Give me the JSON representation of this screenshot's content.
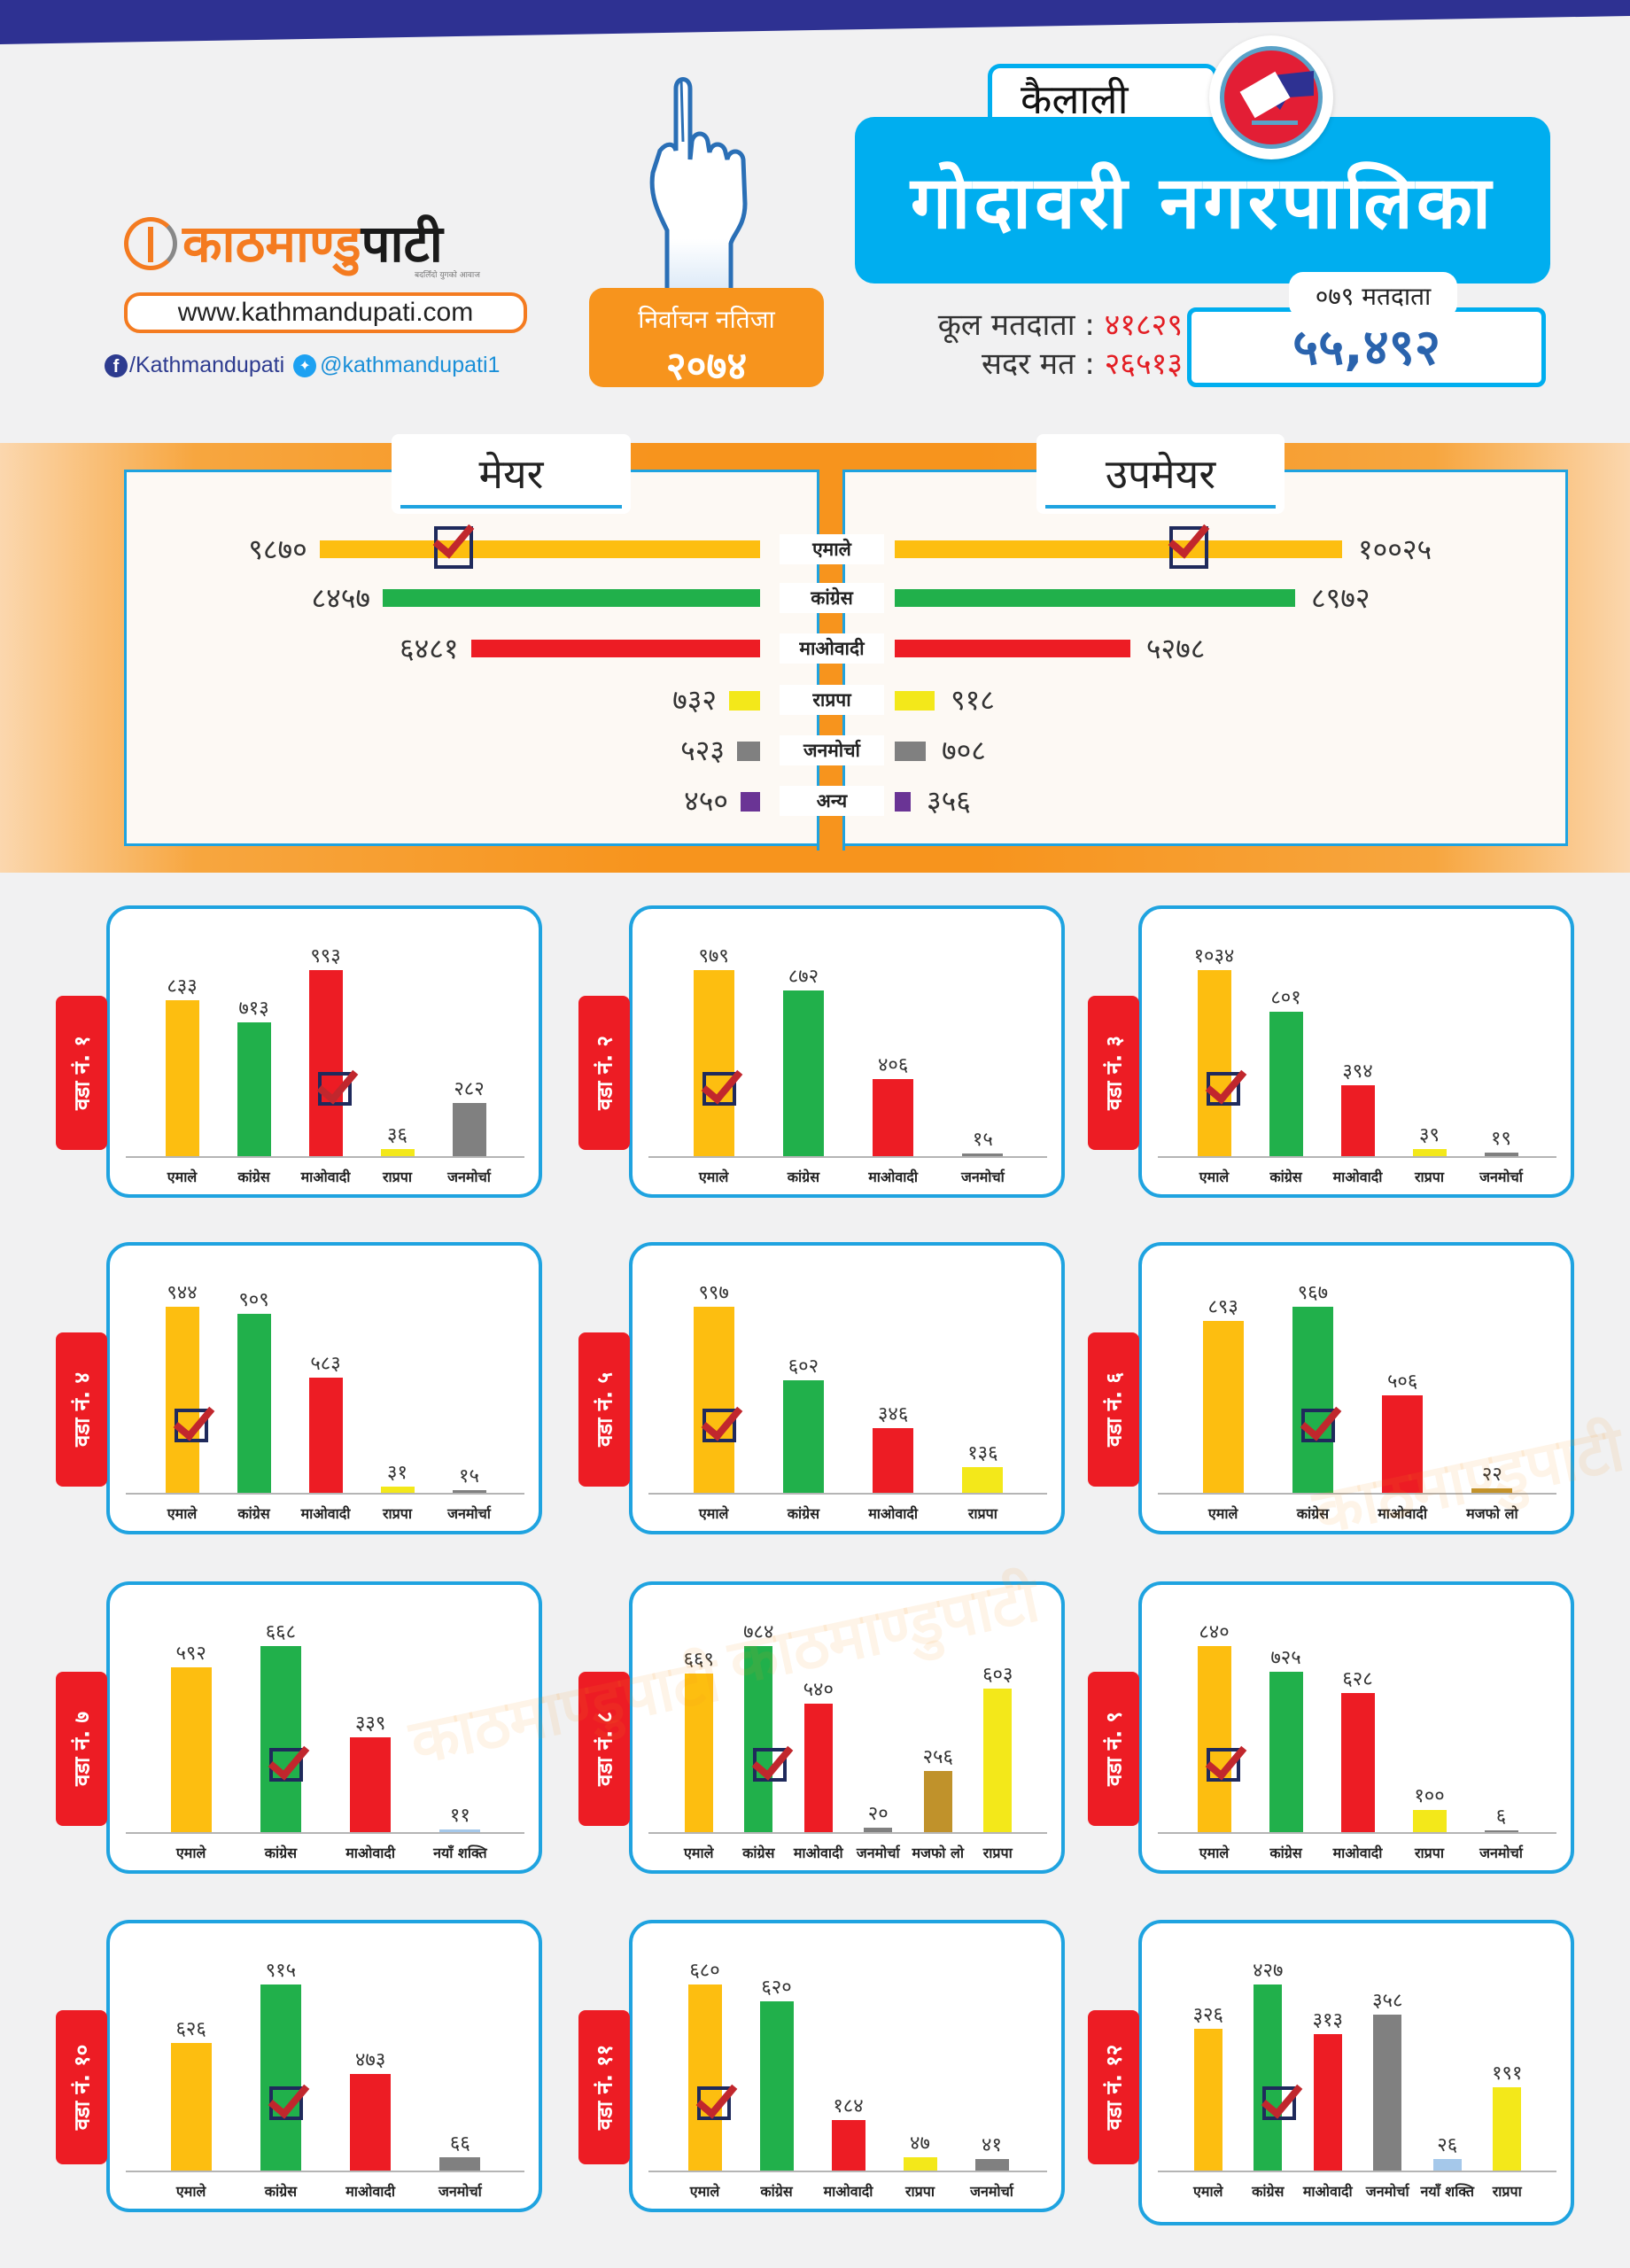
{
  "brand": {
    "logo_part1": "काठमाण्डु",
    "logo_part2": "पाटी",
    "tagline": "बदलिँदो युगको आवाज",
    "website": "www.kathmandupati.com",
    "facebook": "/Kathmandupati",
    "twitter": "@kathmandupati1"
  },
  "header": {
    "result_line1": "निर्वाचन नतिजा",
    "result_line2": "२०७४",
    "district": "कैलाली",
    "municipality": "गोदावरी नगरपालिका",
    "total_voters_label": "कूल मतदाता :",
    "total_voters_value": "४१८२९",
    "valid_votes_label": "सदर मत :",
    "valid_votes_value": "२६५१३",
    "voters_079_label": "०७९ मतदाता",
    "voters_079_value": "५५,४९२"
  },
  "colors": {
    "uml": "#fdbe10",
    "congress": "#21b04b",
    "maoist": "#ed1c24",
    "rpp": "#f3e81a",
    "janmorcha": "#808080",
    "other": "#6a3495",
    "majfo": "#c0922b",
    "naya_shakti": "#a5c8ea",
    "accent_blue": "#00aeef",
    "accent_orange": "#f7941d",
    "navy": "#2e3192"
  },
  "chart_data": [
    {
      "type": "bar",
      "title": "मेयर",
      "orientation": "horizontal",
      "categories": [
        "एमाले",
        "कांग्रेस",
        "माओवादी",
        "राप्रपा",
        "जनमोर्चा",
        "अन्य"
      ],
      "values": [
        9870,
        8457,
        6481,
        732,
        523,
        450
      ],
      "value_labels": [
        "९८७०",
        "८४५७",
        "६४८१",
        "७३२",
        "५२३",
        "४५०"
      ],
      "winner": "एमाले"
    },
    {
      "type": "bar",
      "title": "उपमेयर",
      "orientation": "horizontal",
      "categories": [
        "एमाले",
        "कांग्रेस",
        "माओवादी",
        "राप्रपा",
        "जनमोर्चा",
        "अन्य"
      ],
      "values": [
        10025,
        8972,
        5278,
        918,
        708,
        356
      ],
      "value_labels": [
        "१००२५",
        "८९७२",
        "५२७८",
        "९१८",
        "७०८",
        "३५६"
      ],
      "winner": "एमाले"
    },
    {
      "type": "bar",
      "title": "वडा नं. १",
      "categories": [
        "एमाले",
        "कांग्रेस",
        "माओवादी",
        "राप्रपा",
        "जनमोर्चा"
      ],
      "values": [
        833,
        713,
        993,
        36,
        282
      ],
      "value_labels": [
        "८३३",
        "७१३",
        "९९३",
        "३६",
        "२८२"
      ],
      "parties": [
        "uml",
        "congress",
        "maoist",
        "rpp",
        "janmorcha"
      ],
      "winner": "माओवादी"
    },
    {
      "type": "bar",
      "title": "वडा नं. २",
      "categories": [
        "एमाले",
        "कांग्रेस",
        "माओवादी",
        "जनमोर्चा"
      ],
      "values": [
        979,
        872,
        406,
        15
      ],
      "value_labels": [
        "९७९",
        "८७२",
        "४०६",
        "१५"
      ],
      "parties": [
        "uml",
        "congress",
        "maoist",
        "janmorcha"
      ],
      "winner": "एमाले"
    },
    {
      "type": "bar",
      "title": "वडा नं. ३",
      "categories": [
        "एमाले",
        "कांग्रेस",
        "माओवादी",
        "राप्रपा",
        "जनमोर्चा"
      ],
      "values": [
        1034,
        801,
        394,
        39,
        19
      ],
      "value_labels": [
        "१०३४",
        "८०१",
        "३९४",
        "३९",
        "१९"
      ],
      "parties": [
        "uml",
        "congress",
        "maoist",
        "rpp",
        "janmorcha"
      ],
      "winner": "एमाले"
    },
    {
      "type": "bar",
      "title": "वडा नं. ४",
      "categories": [
        "एमाले",
        "कांग्रेस",
        "माओवादी",
        "राप्रपा",
        "जनमोर्चा"
      ],
      "values": [
        944,
        909,
        583,
        31,
        15
      ],
      "value_labels": [
        "९४४",
        "९०९",
        "५८३",
        "३१",
        "१५"
      ],
      "parties": [
        "uml",
        "congress",
        "maoist",
        "rpp",
        "janmorcha"
      ],
      "winner": "एमाले"
    },
    {
      "type": "bar",
      "title": "वडा नं. ५",
      "categories": [
        "एमाले",
        "कांग्रेस",
        "माओवादी",
        "राप्रपा"
      ],
      "values": [
        997,
        602,
        346,
        136
      ],
      "value_labels": [
        "९९७",
        "६०२",
        "३४६",
        "१३६"
      ],
      "parties": [
        "uml",
        "congress",
        "maoist",
        "rpp"
      ],
      "winner": "एमाले"
    },
    {
      "type": "bar",
      "title": "वडा नं. ६",
      "categories": [
        "एमाले",
        "कांग्रेस",
        "माओवादी",
        "मजफो लो"
      ],
      "values": [
        893,
        967,
        506,
        22
      ],
      "value_labels": [
        "८९३",
        "९६७",
        "५०६",
        "२२"
      ],
      "parties": [
        "uml",
        "congress",
        "maoist",
        "majfo"
      ],
      "winner": "कांग्रेस"
    },
    {
      "type": "bar",
      "title": "वडा नं. ७",
      "categories": [
        "एमाले",
        "कांग्रेस",
        "माओवादी",
        "नयाँ शक्ति"
      ],
      "values": [
        592,
        668,
        339,
        11
      ],
      "value_labels": [
        "५९२",
        "६६८",
        "३३९",
        "११"
      ],
      "parties": [
        "uml",
        "congress",
        "maoist",
        "naya_shakti"
      ],
      "winner": "कांग्रेस"
    },
    {
      "type": "bar",
      "title": "वडा नं. ८",
      "categories": [
        "एमाले",
        "कांग्रेस",
        "माओवादी",
        "जनमोर्चा",
        "मजफो लो",
        "राप्रपा"
      ],
      "values": [
        669,
        784,
        540,
        20,
        256,
        603
      ],
      "value_labels": [
        "६६९",
        "७८४",
        "५४०",
        "२०",
        "२५६",
        "६०३"
      ],
      "parties": [
        "uml",
        "congress",
        "maoist",
        "janmorcha",
        "majfo",
        "rpp"
      ],
      "winner": "कांग्रेस"
    },
    {
      "type": "bar",
      "title": "वडा नं. ९",
      "categories": [
        "एमाले",
        "कांग्रेस",
        "माओवादी",
        "राप्रपा",
        "जनमोर्चा"
      ],
      "values": [
        840,
        725,
        628,
        100,
        6
      ],
      "value_labels": [
        "८४०",
        "७२५",
        "६२८",
        "१००",
        "६"
      ],
      "parties": [
        "uml",
        "congress",
        "maoist",
        "rpp",
        "janmorcha"
      ],
      "winner": "एमाले"
    },
    {
      "type": "bar",
      "title": "वडा नं. १०",
      "categories": [
        "एमाले",
        "कांग्रेस",
        "माओवादी",
        "जनमोर्चा"
      ],
      "values": [
        626,
        915,
        473,
        66
      ],
      "value_labels": [
        "६२६",
        "९१५",
        "४७३",
        "६६"
      ],
      "parties": [
        "uml",
        "congress",
        "maoist",
        "janmorcha"
      ],
      "winner": "कांग्रेस"
    },
    {
      "type": "bar",
      "title": "वडा नं. ११",
      "categories": [
        "एमाले",
        "कांग्रेस",
        "माओवादी",
        "राप्रपा",
        "जनमोर्चा"
      ],
      "values": [
        680,
        620,
        184,
        47,
        41
      ],
      "value_labels": [
        "६८०",
        "६२०",
        "१८४",
        "४७",
        "४१"
      ],
      "parties": [
        "uml",
        "congress",
        "maoist",
        "rpp",
        "janmorcha"
      ],
      "winner": "एमाले"
    },
    {
      "type": "bar",
      "title": "वडा नं. १२",
      "categories": [
        "एमाले",
        "कांग्रेस",
        "माओवादी",
        "जनमोर्चा",
        "नयाँ शक्ति",
        "राप्रपा"
      ],
      "values": [
        326,
        427,
        313,
        358,
        26,
        191
      ],
      "value_labels": [
        "३२६",
        "४२७",
        "३१३",
        "३५८",
        "२६",
        "१९१"
      ],
      "parties": [
        "uml",
        "congress",
        "maoist",
        "janmorcha",
        "naya_shakti",
        "rpp"
      ],
      "winner": "कांग्रेस"
    }
  ]
}
